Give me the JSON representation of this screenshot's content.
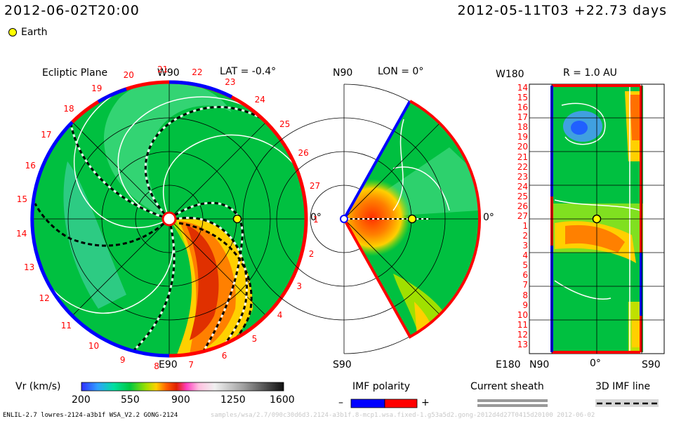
{
  "header": {
    "time": "2012-06-02T20:00",
    "model_run": "2012-05-11T03 +22.73 days"
  },
  "legend": {
    "earth_label": "Earth",
    "earth_color": "#ffff00"
  },
  "ecliptic": {
    "title": "Ecliptic Plane",
    "top_label": "W90",
    "bottom_label": "E90",
    "lat_label": "LAT = -0.4°",
    "zero_label": "0°",
    "rotation_numbers": [
      "2",
      "3",
      "4",
      "5",
      "6",
      "7",
      "8",
      "9",
      "10",
      "11",
      "12",
      "13",
      "14",
      "15",
      "16",
      "17",
      "18",
      "19",
      "20",
      "21",
      "22",
      "23",
      "24",
      "25",
      "26",
      "27",
      "1"
    ]
  },
  "meridional": {
    "title_left": "N90",
    "title": "LON = 0°",
    "bottom_label": "S90",
    "zero_label": "0°"
  },
  "radial": {
    "title_left": "W180",
    "title": "R = 1.0 AU",
    "bottom_left": "E180",
    "x_labels": [
      "N90",
      "0°",
      "S90"
    ],
    "y_labels": [
      "14",
      "15",
      "16",
      "17",
      "18",
      "19",
      "20",
      "21",
      "22",
      "23",
      "24",
      "25",
      "26",
      "27",
      "1",
      "2",
      "3",
      "4",
      "5",
      "6",
      "7",
      "8",
      "9",
      "10",
      "11",
      "12",
      "13"
    ]
  },
  "colorbar": {
    "label": "Vr (km/s)",
    "ticks": [
      "200",
      "550",
      "900",
      "1250",
      "1600"
    ]
  },
  "imf_polarity": {
    "label": "IMF polarity",
    "minus": "–",
    "plus": "+",
    "neg_color": "#0000ff",
    "pos_color": "#ff0000"
  },
  "current_sheath": {
    "label": "Current sheath"
  },
  "imf_line": {
    "label": "3D IMF line"
  },
  "footer": {
    "left": "ENLIL-2.7 lowres-2124-a3b1f WSA_V2.2 GONG-2124",
    "right": "samples/wsa/2.7/090c30d6d3.2124-a3b1f.8-mcp1.wsa.fixed-1.g53a5d2.gong-2012d4d27T0415d20100     2012-06-02"
  }
}
